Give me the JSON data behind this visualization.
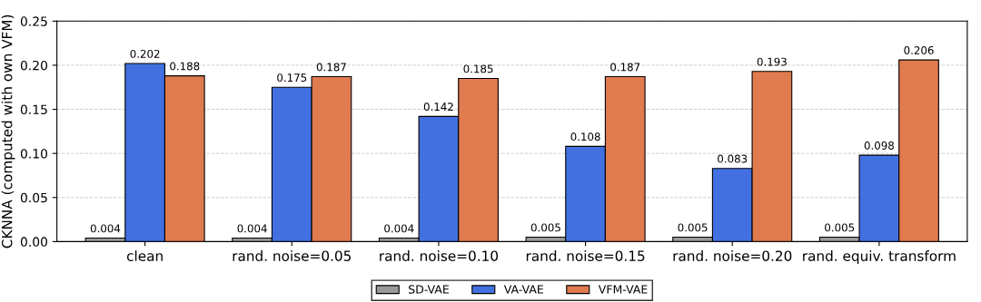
{
  "chart_data": {
    "type": "bar",
    "ylabel": "CKNNA (computed with own VFM)",
    "categories": [
      "clean",
      "rand. noise=0.05",
      "rand. noise=0.10",
      "rand. noise=0.15",
      "rand. noise=0.20",
      "rand. equiv. transform"
    ],
    "series": [
      {
        "name": "SD-VAE",
        "color": "#999999",
        "values": [
          0.004,
          0.004,
          0.004,
          0.005,
          0.005,
          0.005
        ]
      },
      {
        "name": "VA-VAE",
        "color": "#4270e0",
        "values": [
          0.202,
          0.175,
          0.142,
          0.108,
          0.083,
          0.098
        ]
      },
      {
        "name": "VFM-VAE",
        "color": "#e07b4f",
        "values": [
          0.188,
          0.187,
          0.185,
          0.187,
          0.193,
          0.206
        ]
      }
    ],
    "ylim": [
      0,
      0.25
    ],
    "yticks": [
      {
        "value": 0,
        "label": "0.00"
      },
      {
        "value": 0.05,
        "label": "0.05"
      },
      {
        "value": 0.1,
        "label": "0.10"
      },
      {
        "value": 0.15,
        "label": "0.15"
      },
      {
        "value": 0.2,
        "label": "0.20"
      },
      {
        "value": 0.25,
        "label": "0.25"
      }
    ],
    "grid": "y",
    "legend": "bottom",
    "data_labels": true
  }
}
